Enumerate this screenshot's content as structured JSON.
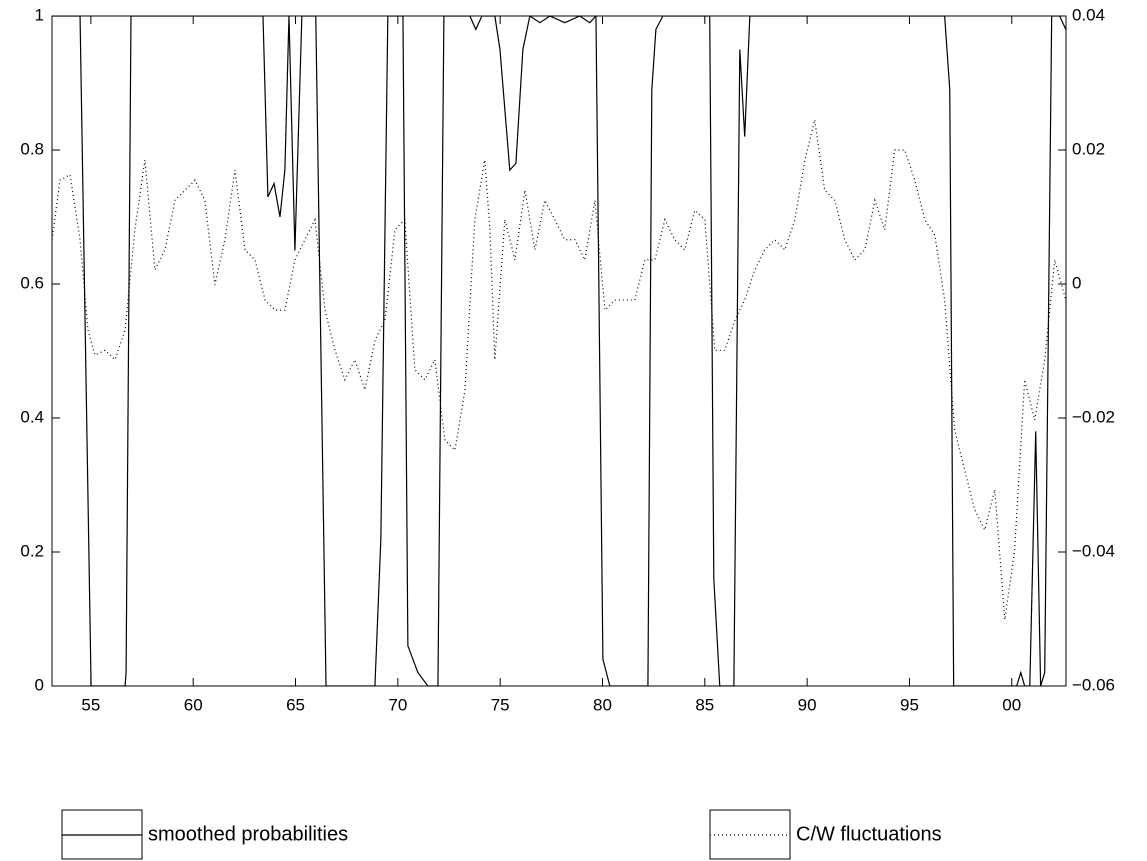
{
  "chart_data": {
    "type": "line",
    "xlim": [
      1953.1,
      2002.65
    ],
    "xticks": [
      {
        "value": 1955,
        "label": "55"
      },
      {
        "value": 1960,
        "label": "60"
      },
      {
        "value": 1965,
        "label": "65"
      },
      {
        "value": 1970,
        "label": "70"
      },
      {
        "value": 1975,
        "label": "75"
      },
      {
        "value": 1980,
        "label": "80"
      },
      {
        "value": 1985,
        "label": "85"
      },
      {
        "value": 1990,
        "label": "90"
      },
      {
        "value": 1995,
        "label": "95"
      },
      {
        "value": 2000,
        "label": "00"
      }
    ],
    "ylim": [
      0,
      1
    ],
    "yticks": [
      0,
      0.2,
      0.4,
      0.6,
      0.8,
      1
    ],
    "y2lim": [
      -0.06,
      0.04
    ],
    "y2ticks": [
      {
        "value": -0.06,
        "label": "−0.06"
      },
      {
        "value": -0.04,
        "label": "−0.04"
      },
      {
        "value": -0.02,
        "label": "−0.02"
      },
      0,
      0.02,
      0.04
    ],
    "series": [
      {
        "name": "smoothed probabilities",
        "color": "#000000",
        "dash": "solid",
        "x": [
          1953.1,
          1954.47,
          1955.01,
          1956.67,
          1956.72,
          1956.96,
          1963.41,
          1963.65,
          1963.95,
          1964.24,
          1964.48,
          1964.68,
          1964.97,
          1965.31,
          1965.99,
          1966.49,
          1968.88,
          1969.17,
          1969.51,
          1970.25,
          1970.49,
          1970.98,
          1971.47,
          1971.96,
          1972.25,
          1973.52,
          1973.81,
          1974.11,
          1974.74,
          1974.99,
          1975.47,
          1975.77,
          1976.11,
          1976.45,
          1976.94,
          1977.43,
          1978.16,
          1978.89,
          1979.38,
          1979.68,
          1980.02,
          1980.36,
          1982.22,
          1982.41,
          1982.61,
          1982.95,
          1985.24,
          1985.44,
          1985.73,
          1986.42,
          1986.71,
          1986.95,
          1987.2,
          1996.72,
          1996.97,
          1997.16,
          2000.24,
          2000.44,
          2000.63,
          2000.88,
          2001.17,
          2001.41,
          2001.61,
          2001.95,
          2002.34,
          2002.64
        ],
        "values": [
          1,
          1,
          0,
          0,
          0.02,
          1,
          1,
          0.73,
          0.75,
          0.7,
          0.77,
          1,
          0.65,
          1,
          1,
          0,
          0,
          0.22,
          1,
          1,
          0.06,
          0.02,
          0,
          0,
          1,
          1,
          0.98,
          1,
          1,
          0.95,
          0.77,
          0.78,
          0.95,
          1,
          0.99,
          1,
          0.99,
          1,
          0.99,
          1,
          0.04,
          0,
          0,
          0.89,
          0.98,
          1,
          1,
          0.16,
          0,
          0,
          0.95,
          0.82,
          1,
          1,
          0.89,
          0,
          0,
          0.02,
          0,
          0,
          0.38,
          0,
          0.02,
          1,
          1,
          0.98
        ]
      },
      {
        "name": "C/W fluctuations",
        "color": "#000000",
        "dash": "dotted",
        "axis": "y2",
        "x": [
          1953.1,
          1953.49,
          1953.98,
          1954.47,
          1954.86,
          1955.2,
          1955.69,
          1956.18,
          1956.67,
          1957.15,
          1957.64,
          1958.13,
          1958.62,
          1959.11,
          1959.6,
          1960.09,
          1960.57,
          1961.06,
          1961.55,
          1962.04,
          1962.53,
          1963.02,
          1963.51,
          1964.0,
          1964.48,
          1964.97,
          1965.46,
          1965.95,
          1966.44,
          1966.93,
          1967.41,
          1967.9,
          1968.39,
          1968.88,
          1969.37,
          1969.86,
          1970.34,
          1970.83,
          1971.32,
          1971.81,
          1972.3,
          1972.79,
          1973.28,
          1973.76,
          1974.25,
          1974.5,
          1974.74,
          1975.23,
          1975.72,
          1976.21,
          1976.7,
          1977.18,
          1977.67,
          1978.16,
          1978.65,
          1979.14,
          1979.63,
          1980.12,
          1980.6,
          1981.09,
          1981.58,
          1982.07,
          1982.56,
          1983.05,
          1983.53,
          1984.02,
          1984.51,
          1985.0,
          1985.49,
          1985.98,
          1986.47,
          1986.95,
          1987.44,
          1987.93,
          1988.42,
          1988.91,
          1989.4,
          1989.89,
          1990.37,
          1990.86,
          1991.35,
          1991.84,
          1992.33,
          1992.82,
          1993.31,
          1993.79,
          1994.28,
          1994.77,
          1995.26,
          1995.75,
          1996.24,
          1996.72,
          1997.21,
          1997.7,
          1998.19,
          1998.68,
          1999.17,
          1999.66,
          2000.14,
          2000.63,
          2001.12,
          2001.61,
          2002.1,
          2002.64
        ],
        "values": [
          0.0066,
          0.0155,
          0.0163,
          0.0066,
          -0.0069,
          -0.0106,
          -0.0099,
          -0.0113,
          -0.0069,
          0.0081,
          0.0185,
          0.0021,
          0.0051,
          0.0125,
          0.014,
          0.0155,
          0.0125,
          -0.0001,
          0.0066,
          0.017,
          0.0051,
          0.0036,
          -0.0024,
          -0.0039,
          -0.0039,
          0.0036,
          0.0066,
          0.0096,
          -0.0039,
          -0.0099,
          -0.0143,
          -0.0113,
          -0.0158,
          -0.0084,
          -0.0054,
          0.0081,
          0.0096,
          -0.0128,
          -0.0143,
          -0.0113,
          -0.0233,
          -0.0248,
          -0.0158,
          0.0096,
          0.0185,
          0.0081,
          -0.0113,
          0.0096,
          0.0036,
          0.014,
          0.0051,
          0.0125,
          0.0096,
          0.0066,
          0.0066,
          0.0036,
          0.0125,
          -0.0039,
          -0.0024,
          -0.0024,
          -0.0024,
          0.0036,
          0.0036,
          0.0096,
          0.0066,
          0.0051,
          0.011,
          0.0096,
          -0.0099,
          -0.0099,
          -0.0054,
          -0.0024,
          0.0021,
          0.0051,
          0.0066,
          0.0051,
          0.0096,
          0.0185,
          0.0245,
          0.014,
          0.0125,
          0.0066,
          0.0036,
          0.0051,
          0.0125,
          0.0081,
          0.02,
          0.02,
          0.0155,
          0.0096,
          0.0073,
          -0.0024,
          -0.0218,
          -0.0278,
          -0.0337,
          -0.0367,
          -0.0307,
          -0.0501,
          -0.0397,
          -0.0143,
          -0.0203,
          -0.0113,
          0.0036,
          -0.0024
        ]
      }
    ]
  }
}
